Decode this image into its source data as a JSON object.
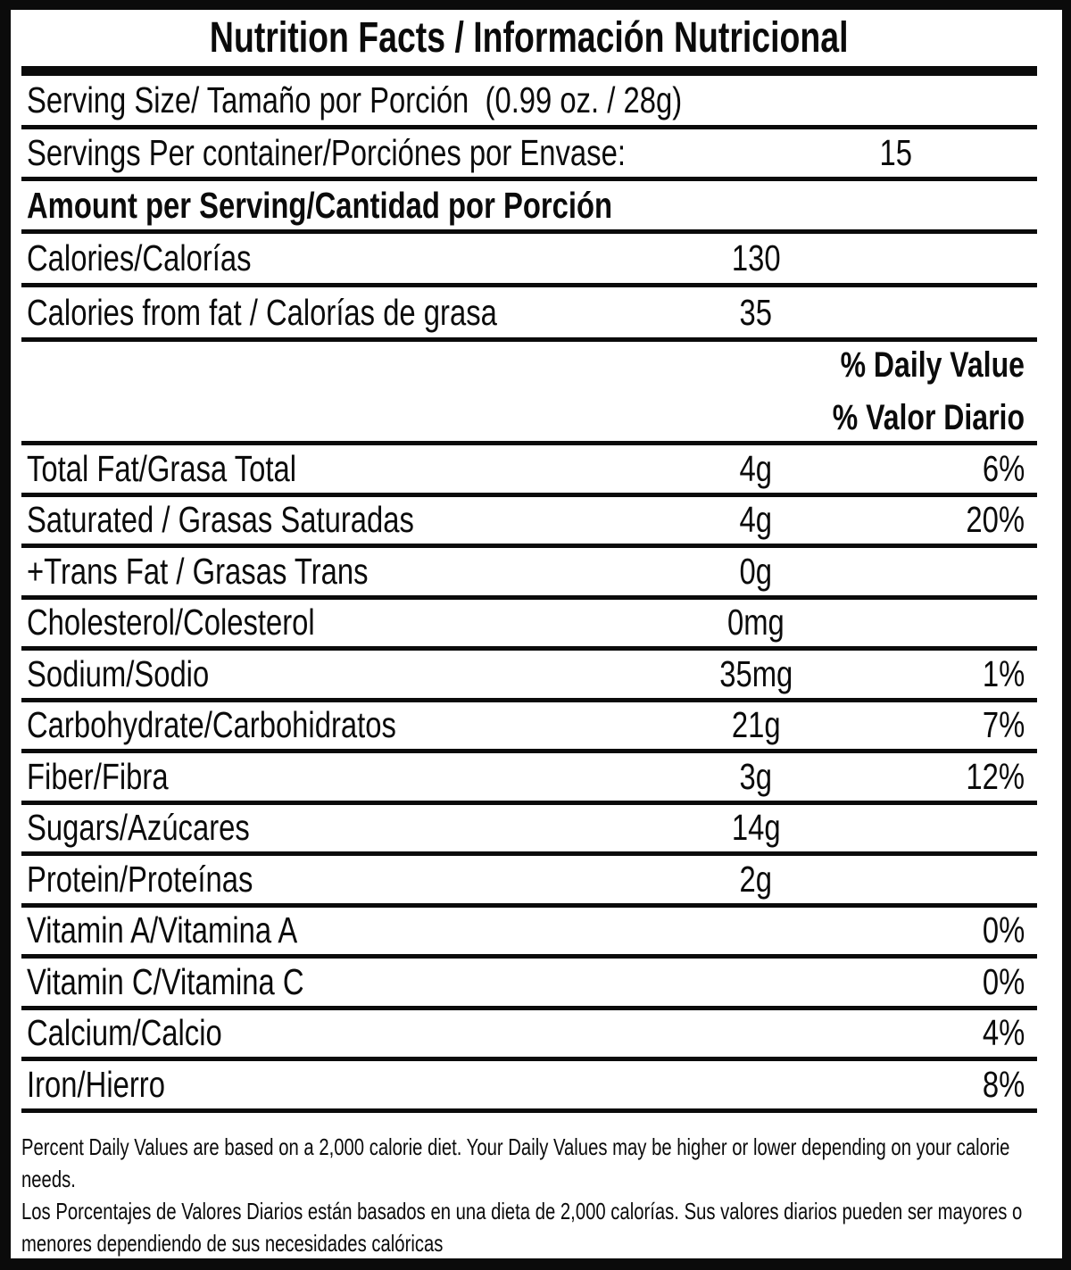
{
  "colors": {
    "ink": "#0b0b0b",
    "paper": "#ffffff"
  },
  "title": "Nutrition Facts / Información Nutricional",
  "serving_info": {
    "serving_size": "Serving Size/ Tamaño por Porción  (0.99 oz. / 28g)",
    "servings_per_container_label": "Servings Per container/Porciónes por Envase:",
    "servings_per_container_value": "15"
  },
  "amount_per_serving_header": "Amount per Serving/Cantidad por Porción",
  "calories": [
    {
      "label": "Calories/Calorías",
      "value": "130"
    },
    {
      "label": "Calories from fat / Calorías de grasa",
      "value": "35"
    }
  ],
  "daily_value_header": {
    "en": "% Daily Value",
    "es": "% Valor Diario"
  },
  "nutrients": [
    {
      "label": "Total Fat/Grasa Total",
      "amount": "4g",
      "daily_value": "6%"
    },
    {
      "label": "Saturated / Grasas Saturadas",
      "amount": "4g",
      "daily_value": "20%"
    },
    {
      "label": "+Trans Fat / Grasas Trans",
      "amount": "0g",
      "daily_value": ""
    },
    {
      "label": "Cholesterol/Colesterol",
      "amount": "0mg",
      "daily_value": ""
    },
    {
      "label": "Sodium/Sodio",
      "amount": "35mg",
      "daily_value": "1%"
    },
    {
      "label": "Carbohydrate/Carbohidratos",
      "amount": "21g",
      "daily_value": "7%"
    },
    {
      "label": "Fiber/Fibra",
      "amount": "3g",
      "daily_value": "12%"
    },
    {
      "label": "Sugars/Azúcares",
      "amount": "14g",
      "daily_value": ""
    },
    {
      "label": "Protein/Proteínas",
      "amount": "2g",
      "daily_value": ""
    },
    {
      "label": "Vitamin A/Vitamina A",
      "amount": "",
      "daily_value": "0%"
    },
    {
      "label": "Vitamin C/Vitamina C",
      "amount": "",
      "daily_value": "0%"
    },
    {
      "label": "Calcium/Calcio",
      "amount": "",
      "daily_value": "4%"
    },
    {
      "label": "Iron/Hierro",
      "amount": "",
      "daily_value": "8%"
    }
  ],
  "footnote": {
    "en": "Percent Daily Values are based on a 2,000 calorie diet. Your Daily Values may be higher or lower depending on your calorie needs.",
    "es": "Los Porcentajes de Valores Diarios están basados en una dieta de 2,000 calorías. Sus valores diarios pueden ser mayores o menores dependiendo de sus necesidades calóricas"
  }
}
